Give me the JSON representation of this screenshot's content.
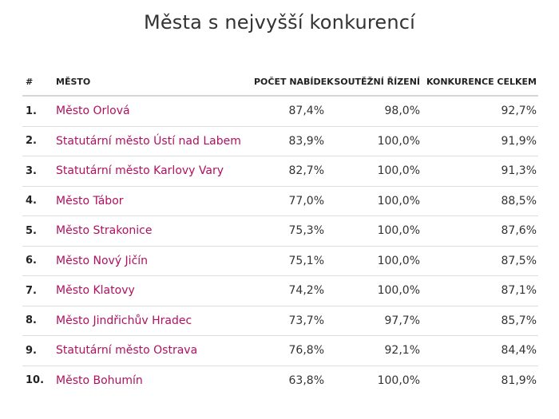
{
  "title": "Města s nejvyšší konkurencí",
  "table": {
    "headers": [
      "#",
      "MĚSTO",
      "POČET NABÍDEK",
      "SOUTĚŽNÍ ŘÍZENÍ",
      "KONKURENCE CELKEM"
    ],
    "rows": [
      {
        "rank": "1.",
        "city": "Město Orlová",
        "offers": "87,4%",
        "tenders": "98,0%",
        "total": "92,7%"
      },
      {
        "rank": "2.",
        "city": "Statutární město Ústí nad Labem",
        "offers": "83,9%",
        "tenders": "100,0%",
        "total": "91,9%"
      },
      {
        "rank": "3.",
        "city": "Statutární město Karlovy Vary",
        "offers": "82,7%",
        "tenders": "100,0%",
        "total": "91,3%"
      },
      {
        "rank": "4.",
        "city": "Město Tábor",
        "offers": "77,0%",
        "tenders": "100,0%",
        "total": "88,5%"
      },
      {
        "rank": "5.",
        "city": "Město Strakonice",
        "offers": "75,3%",
        "tenders": "100,0%",
        "total": "87,6%"
      },
      {
        "rank": "6.",
        "city": "Město Nový Jičín",
        "offers": "75,1%",
        "tenders": "100,0%",
        "total": "87,5%"
      },
      {
        "rank": "7.",
        "city": "Město Klatovy",
        "offers": "74,2%",
        "tenders": "100,0%",
        "total": "87,1%"
      },
      {
        "rank": "8.",
        "city": "Město Jindřichův Hradec",
        "offers": "73,7%",
        "tenders": "97,7%",
        "total": "85,7%"
      },
      {
        "rank": "9.",
        "city": "Statutární město Ostrava",
        "offers": "76,8%",
        "tenders": "92,1%",
        "total": "84,4%"
      },
      {
        "rank": "10.",
        "city": "Město Bohumín",
        "offers": "63,8%",
        "tenders": "100,0%",
        "total": "81,9%"
      }
    ]
  },
  "colors": {
    "city_link": "#b0105f",
    "text": "#333333",
    "row_divider": "#dddddd"
  }
}
